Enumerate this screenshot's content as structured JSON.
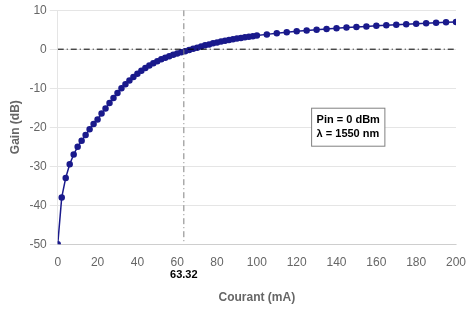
{
  "chart_data": {
    "type": "line",
    "xlabel": "Courant (mA)",
    "ylabel": "Gain (dB)",
    "xlim": [
      0,
      200
    ],
    "ylim": [
      -50,
      10
    ],
    "xticks": [
      0,
      20,
      40,
      60,
      80,
      100,
      120,
      140,
      160,
      180,
      200
    ],
    "yticks": [
      -50,
      -40,
      -30,
      -20,
      -10,
      0,
      10
    ],
    "grid": "y",
    "x": [
      0,
      2,
      4,
      6,
      8,
      10,
      12,
      14,
      16,
      18,
      20,
      22,
      24,
      26,
      28,
      30,
      32,
      34,
      36,
      38,
      40,
      42,
      44,
      46,
      48,
      50,
      52,
      54,
      56,
      58,
      60,
      62,
      64,
      66,
      68,
      70,
      72,
      74,
      76,
      78,
      80,
      82,
      84,
      86,
      88,
      90,
      92,
      94,
      96,
      98,
      100,
      105,
      110,
      115,
      120,
      125,
      130,
      135,
      140,
      145,
      150,
      155,
      160,
      165,
      170,
      175,
      180,
      185,
      190,
      195,
      200
    ],
    "series": [
      {
        "color": "#1a1a8c",
        "marker": "circle",
        "values": [
          -50,
          -38,
          -33,
          -29.5,
          -27,
          -25,
          -23.5,
          -22,
          -20.5,
          -19.2,
          -18.0,
          -16.5,
          -15.2,
          -13.8,
          -12.5,
          -11.2,
          -10.0,
          -9.0,
          -8.0,
          -7.1,
          -6.3,
          -5.5,
          -4.8,
          -4.2,
          -3.6,
          -3.1,
          -2.6,
          -2.2,
          -1.8,
          -1.4,
          -1.1,
          -0.8,
          -0.5,
          -0.2,
          0.1,
          0.4,
          0.7,
          1.0,
          1.2,
          1.5,
          1.7,
          1.95,
          2.15,
          2.35,
          2.55,
          2.75,
          2.9,
          3.05,
          3.2,
          3.35,
          3.5,
          3.8,
          4.1,
          4.35,
          4.6,
          4.8,
          5.0,
          5.2,
          5.4,
          5.55,
          5.7,
          5.85,
          6.0,
          6.15,
          6.28,
          6.42,
          6.55,
          6.65,
          6.78,
          6.9,
          7.0
        ]
      }
    ],
    "hlines": [
      {
        "y": 0,
        "color": "#000000",
        "line_style": "dashdot"
      }
    ],
    "vlines": [
      {
        "x": 63.32,
        "color": "#808080",
        "line_style": "dashdot",
        "label": "63.32"
      }
    ],
    "annotations": [
      {
        "text": [
          "Pin = 0 dBm",
          "λ = 1550 nm"
        ],
        "x": 130,
        "y": -20
      }
    ]
  }
}
